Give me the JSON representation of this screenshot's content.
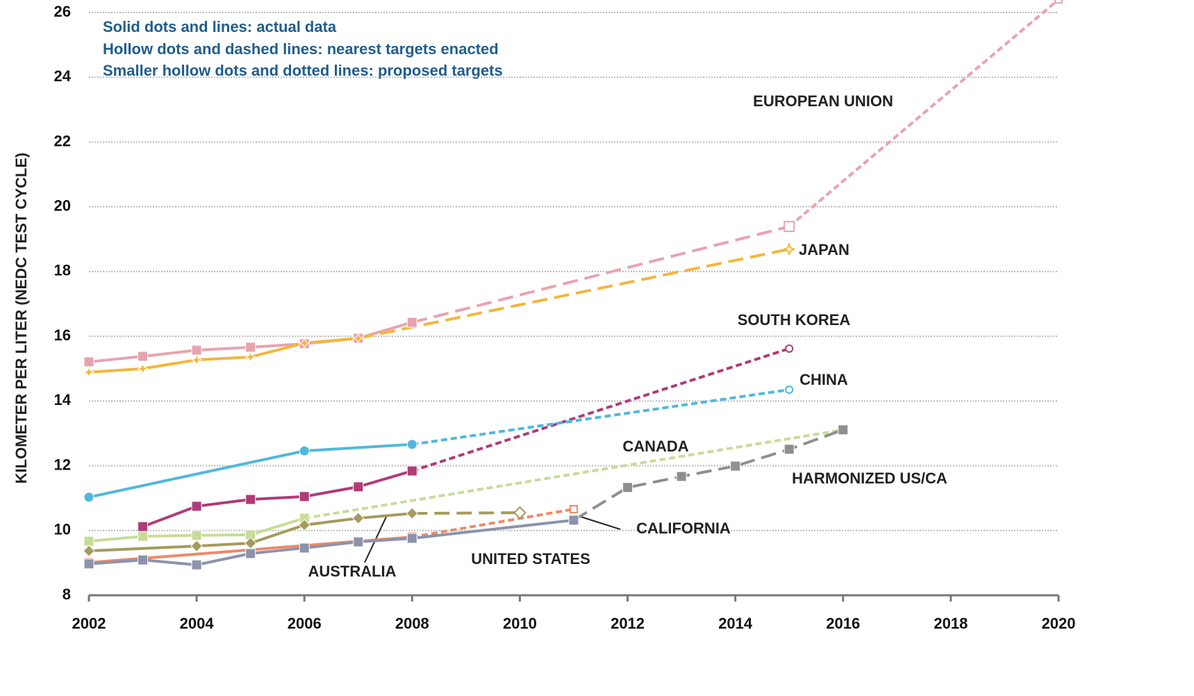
{
  "chart_data": {
    "type": "line",
    "y_label": "KILOMETER PER LITER (NEDC TEST CYCLE)",
    "annotations": [
      "Solid dots and lines: actual data",
      "Hollow dots and dashed lines: nearest targets enacted",
      "Smaller hollow dots and dotted lines: proposed targets"
    ],
    "xlim": [
      2002,
      2020
    ],
    "xticks": [
      2002,
      2004,
      2006,
      2008,
      2010,
      2012,
      2014,
      2016,
      2018,
      2020
    ],
    "ylim": [
      8,
      26.4
    ],
    "yticks": [
      8,
      10,
      12,
      14,
      16,
      18,
      20,
      22,
      24,
      26
    ],
    "grid": true,
    "series": [
      {
        "name": "EUROPEAN UNION",
        "color": "#e8a3ae",
        "style": "solid",
        "marker": "square",
        "x": [
          2002,
          2003,
          2004,
          2005,
          2006,
          2007,
          2008
        ],
        "values": [
          15.21,
          15.38,
          15.57,
          15.66,
          15.77,
          15.94,
          16.43
        ]
      },
      {
        "color": "#e8a3ae",
        "style": "dashed",
        "marker": "square",
        "x": [
          2008,
          2015
        ],
        "values": [
          16.43,
          19.39
        ]
      },
      {
        "color": "#e8a3ae",
        "style": "dotted",
        "marker": "square",
        "x": [
          2015,
          2020
        ],
        "values": [
          19.39,
          26.4
        ]
      },
      {
        "name": "JAPAN",
        "color": "#f4b63a",
        "style": "solid",
        "marker": "star",
        "x": [
          2002,
          2003,
          2004,
          2005,
          2006,
          2007
        ],
        "values": [
          14.89,
          15.0,
          15.27,
          15.36,
          15.79,
          15.94
        ]
      },
      {
        "color": "#f4b63a",
        "style": "dashed",
        "marker": "star",
        "x": [
          2007,
          2015
        ],
        "values": [
          15.94,
          18.69
        ]
      },
      {
        "name": "SOUTH KOREA",
        "color": "#b03a78",
        "style": "solid",
        "marker": "square",
        "x": [
          2003,
          2004,
          2005,
          2006,
          2007,
          2008
        ],
        "values": [
          10.12,
          10.75,
          10.96,
          11.05,
          11.35,
          11.84
        ]
      },
      {
        "color": "#b03a78",
        "style": "dotted",
        "marker": "circle",
        "x": [
          2008,
          2015
        ],
        "values": [
          11.84,
          15.62
        ]
      },
      {
        "name": "CHINA",
        "color": "#4fb8dc",
        "style": "solid",
        "marker": "circle",
        "x": [
          2002,
          2006,
          2008
        ],
        "values": [
          11.03,
          12.46,
          12.66
        ]
      },
      {
        "color": "#4fb8dc",
        "style": "dotted",
        "marker": "circle",
        "x": [
          2008,
          2015
        ],
        "values": [
          12.66,
          14.35
        ]
      },
      {
        "name": "CANADA",
        "color": "#c7dc98",
        "style": "solid",
        "marker": "square",
        "x": [
          2002,
          2003,
          2004,
          2005,
          2006
        ],
        "values": [
          9.67,
          9.82,
          9.85,
          9.87,
          10.38
        ]
      },
      {
        "color": "#c7dc98",
        "style": "dotted",
        "marker": "square",
        "x": [
          2006,
          2016
        ],
        "values": [
          10.38,
          13.11
        ]
      },
      {
        "name": "HARMONIZED US/CA",
        "color": "#8f8f8f",
        "style": "dashed",
        "marker": "square",
        "x": [
          2011,
          2012,
          2013,
          2014,
          2015,
          2016
        ],
        "values": [
          10.32,
          11.33,
          11.67,
          11.99,
          12.51,
          13.11
        ]
      },
      {
        "name": "CALIFORNIA",
        "color": "#ec8a68",
        "style": "solid",
        "marker": "square",
        "x": [
          2002,
          2008
        ],
        "values": [
          9.01,
          9.8
        ]
      },
      {
        "color": "#ec8a68",
        "style": "dotted",
        "marker": "square",
        "x": [
          2008,
          2011
        ],
        "values": [
          9.8,
          10.66
        ]
      },
      {
        "name": "UNITED STATES",
        "color": "#8d93ab",
        "style": "solid",
        "marker": "square",
        "x": [
          2002,
          2003,
          2004,
          2005,
          2006,
          2007,
          2008,
          2011
        ],
        "values": [
          8.97,
          9.09,
          8.94,
          9.29,
          9.46,
          9.65,
          9.76,
          10.32
        ]
      },
      {
        "name": "AUSTRALIA",
        "color": "#a59a5c",
        "style": "solid",
        "marker": "diamond",
        "x": [
          2002,
          2004,
          2005,
          2006,
          2007,
          2008
        ],
        "values": [
          9.37,
          9.52,
          9.61,
          10.17,
          10.38,
          10.53
        ]
      },
      {
        "color": "#a59a5c",
        "style": "dashed",
        "marker": "diamond",
        "x": [
          2008,
          2010
        ],
        "values": [
          10.53,
          10.55
        ]
      }
    ]
  }
}
